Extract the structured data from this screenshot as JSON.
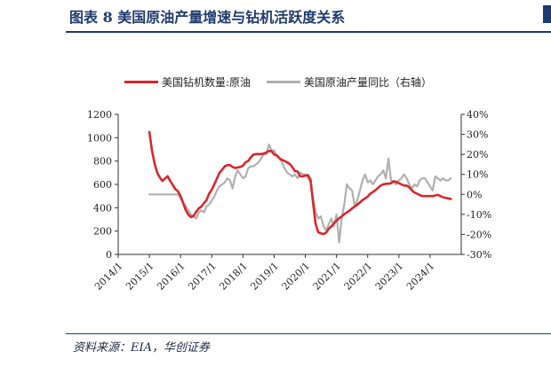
{
  "header": {
    "title": "图表 8  美国原油产量增速与钻机活跃度关系"
  },
  "footer": {
    "source": "资料来源：EIA，华创证券"
  },
  "chart_data": {
    "type": "line",
    "legend_position": "top",
    "grid": false,
    "x_ticks": [
      "2014/1",
      "2015/1",
      "2016/1",
      "2017/1",
      "2018/1",
      "2019/1",
      "2020/1",
      "2021/1",
      "2022/1",
      "2023/1",
      "2024/1"
    ],
    "xlim": [
      "2014-01",
      "2025-01"
    ],
    "y_left": {
      "ylim": [
        0,
        1200
      ],
      "ticks": [
        "0",
        "200",
        "400",
        "600",
        "800",
        "1000",
        "1200"
      ]
    },
    "y_right": {
      "ylim": [
        -30,
        40
      ],
      "ticks": [
        "-30%",
        "-20%",
        "-10%",
        "0%",
        "10%",
        "20%",
        "30%",
        "40%"
      ]
    },
    "series": [
      {
        "name": "美国钻机数量:原油",
        "axis": "left",
        "color": "#d9262c",
        "points": [
          [
            "2015-01",
            1050
          ],
          [
            "2015-02",
            890
          ],
          [
            "2015-03",
            780
          ],
          [
            "2015-04",
            700
          ],
          [
            "2015-05",
            660
          ],
          [
            "2015-06",
            630
          ],
          [
            "2015-07",
            650
          ],
          [
            "2015-08",
            670
          ],
          [
            "2015-09",
            630
          ],
          [
            "2015-10",
            595
          ],
          [
            "2015-11",
            560
          ],
          [
            "2015-12",
            540
          ],
          [
            "2016-01",
            500
          ],
          [
            "2016-02",
            440
          ],
          [
            "2016-03",
            380
          ],
          [
            "2016-04",
            340
          ],
          [
            "2016-05",
            320
          ],
          [
            "2016-06",
            330
          ],
          [
            "2016-07",
            365
          ],
          [
            "2016-08",
            395
          ],
          [
            "2016-09",
            410
          ],
          [
            "2016-10",
            440
          ],
          [
            "2016-11",
            465
          ],
          [
            "2016-12",
            520
          ],
          [
            "2017-01",
            555
          ],
          [
            "2017-02",
            600
          ],
          [
            "2017-03",
            650
          ],
          [
            "2017-04",
            700
          ],
          [
            "2017-05",
            725
          ],
          [
            "2017-06",
            755
          ],
          [
            "2017-07",
            765
          ],
          [
            "2017-08",
            765
          ],
          [
            "2017-09",
            750
          ],
          [
            "2017-10",
            740
          ],
          [
            "2017-11",
            745
          ],
          [
            "2017-12",
            750
          ],
          [
            "2018-01",
            760
          ],
          [
            "2018-02",
            790
          ],
          [
            "2018-03",
            800
          ],
          [
            "2018-04",
            830
          ],
          [
            "2018-05",
            855
          ],
          [
            "2018-06",
            860
          ],
          [
            "2018-07",
            860
          ],
          [
            "2018-08",
            860
          ],
          [
            "2018-09",
            865
          ],
          [
            "2018-10",
            873
          ],
          [
            "2018-11",
            886
          ],
          [
            "2018-12",
            885
          ],
          [
            "2019-01",
            855
          ],
          [
            "2019-02",
            850
          ],
          [
            "2019-03",
            825
          ],
          [
            "2019-04",
            810
          ],
          [
            "2019-05",
            800
          ],
          [
            "2019-06",
            790
          ],
          [
            "2019-07",
            775
          ],
          [
            "2019-08",
            750
          ],
          [
            "2019-09",
            715
          ],
          [
            "2019-10",
            710
          ],
          [
            "2019-11",
            670
          ],
          [
            "2019-12",
            668
          ],
          [
            "2020-01",
            675
          ],
          [
            "2020-02",
            680
          ],
          [
            "2020-03",
            640
          ],
          [
            "2020-04",
            440
          ],
          [
            "2020-05",
            260
          ],
          [
            "2020-06",
            190
          ],
          [
            "2020-07",
            180
          ],
          [
            "2020-08",
            175
          ],
          [
            "2020-09",
            185
          ],
          [
            "2020-10",
            220
          ],
          [
            "2020-11",
            240
          ],
          [
            "2020-12",
            265
          ],
          [
            "2021-01",
            290
          ],
          [
            "2021-02",
            310
          ],
          [
            "2021-03",
            325
          ],
          [
            "2021-04",
            345
          ],
          [
            "2021-05",
            360
          ],
          [
            "2021-06",
            375
          ],
          [
            "2021-07",
            395
          ],
          [
            "2021-08",
            410
          ],
          [
            "2021-09",
            425
          ],
          [
            "2021-10",
            445
          ],
          [
            "2021-11",
            465
          ],
          [
            "2021-12",
            480
          ],
          [
            "2022-01",
            495
          ],
          [
            "2022-02",
            520
          ],
          [
            "2022-03",
            535
          ],
          [
            "2022-04",
            550
          ],
          [
            "2022-05",
            570
          ],
          [
            "2022-06",
            590
          ],
          [
            "2022-07",
            600
          ],
          [
            "2022-08",
            605
          ],
          [
            "2022-09",
            605
          ],
          [
            "2022-10",
            610
          ],
          [
            "2022-11",
            627
          ],
          [
            "2022-12",
            621
          ],
          [
            "2023-01",
            610
          ],
          [
            "2023-02",
            600
          ],
          [
            "2023-03",
            590
          ],
          [
            "2023-04",
            590
          ],
          [
            "2023-05",
            575
          ],
          [
            "2023-06",
            550
          ],
          [
            "2023-07",
            530
          ],
          [
            "2023-08",
            520
          ],
          [
            "2023-09",
            510
          ],
          [
            "2023-10",
            500
          ],
          [
            "2023-11",
            500
          ],
          [
            "2023-12",
            500
          ],
          [
            "2024-01",
            500
          ],
          [
            "2024-02",
            500
          ],
          [
            "2024-03",
            505
          ],
          [
            "2024-04",
            510
          ],
          [
            "2024-05",
            500
          ],
          [
            "2024-06",
            490
          ],
          [
            "2024-07",
            485
          ],
          [
            "2024-08",
            480
          ],
          [
            "2024-09",
            475
          ]
        ]
      },
      {
        "name": "美国原油产量同比（右轴）",
        "axis": "right",
        "color": "#b0b0b0",
        "points": [
          [
            "2015-01",
            0
          ],
          [
            "2015-12",
            0
          ],
          [
            "2016-01",
            -2
          ],
          [
            "2016-02",
            -4
          ],
          [
            "2016-03",
            -6
          ],
          [
            "2016-04",
            -8
          ],
          [
            "2016-05",
            -10
          ],
          [
            "2016-06",
            -11
          ],
          [
            "2016-07",
            -12
          ],
          [
            "2016-08",
            -9
          ],
          [
            "2016-09",
            -8
          ],
          [
            "2016-10",
            -9
          ],
          [
            "2016-11",
            -6
          ],
          [
            "2016-12",
            -5
          ],
          [
            "2017-01",
            -3
          ],
          [
            "2017-02",
            -1
          ],
          [
            "2017-03",
            2
          ],
          [
            "2017-04",
            4
          ],
          [
            "2017-05",
            5
          ],
          [
            "2017-06",
            6
          ],
          [
            "2017-07",
            8
          ],
          [
            "2017-08",
            7
          ],
          [
            "2017-09",
            3
          ],
          [
            "2017-10",
            9
          ],
          [
            "2017-11",
            12
          ],
          [
            "2017-12",
            10
          ],
          [
            "2018-01",
            8
          ],
          [
            "2018-02",
            9
          ],
          [
            "2018-03",
            13
          ],
          [
            "2018-04",
            14
          ],
          [
            "2018-05",
            14
          ],
          [
            "2018-06",
            15
          ],
          [
            "2018-07",
            16
          ],
          [
            "2018-08",
            18
          ],
          [
            "2018-09",
            20
          ],
          [
            "2018-10",
            20
          ],
          [
            "2018-11",
            25
          ],
          [
            "2018-12",
            22
          ],
          [
            "2019-01",
            22
          ],
          [
            "2019-02",
            19
          ],
          [
            "2019-03",
            18
          ],
          [
            "2019-04",
            16
          ],
          [
            "2019-05",
            13
          ],
          [
            "2019-06",
            11
          ],
          [
            "2019-07",
            10
          ],
          [
            "2019-08",
            9
          ],
          [
            "2019-09",
            10
          ],
          [
            "2019-10",
            8
          ],
          [
            "2019-11",
            11
          ],
          [
            "2019-12",
            10
          ],
          [
            "2020-01",
            10
          ],
          [
            "2020-02",
            8
          ],
          [
            "2020-03",
            6
          ],
          [
            "2020-04",
            -2
          ],
          [
            "2020-05",
            -9
          ],
          [
            "2020-06",
            -12
          ],
          [
            "2020-07",
            -11
          ],
          [
            "2020-08",
            -16
          ],
          [
            "2020-09",
            -18
          ],
          [
            "2020-10",
            -15
          ],
          [
            "2020-11",
            -12
          ],
          [
            "2020-12",
            -16
          ],
          [
            "2021-01",
            -10
          ],
          [
            "2021-02",
            -24
          ],
          [
            "2021-03",
            -12
          ],
          [
            "2021-04",
            -5
          ],
          [
            "2021-05",
            5
          ],
          [
            "2021-06",
            3
          ],
          [
            "2021-07",
            2
          ],
          [
            "2021-08",
            -6
          ],
          [
            "2021-09",
            -3
          ],
          [
            "2021-10",
            2
          ],
          [
            "2021-11",
            7
          ],
          [
            "2021-12",
            10
          ],
          [
            "2022-01",
            6
          ],
          [
            "2022-02",
            7
          ],
          [
            "2022-03",
            5
          ],
          [
            "2022-04",
            7
          ],
          [
            "2022-05",
            9
          ],
          [
            "2022-06",
            10
          ],
          [
            "2022-07",
            12
          ],
          [
            "2022-08",
            8
          ],
          [
            "2022-09",
            18
          ],
          [
            "2022-10",
            7
          ],
          [
            "2022-11",
            6
          ],
          [
            "2022-12",
            5
          ],
          [
            "2023-01",
            7
          ],
          [
            "2023-02",
            8
          ],
          [
            "2023-03",
            10
          ],
          [
            "2023-04",
            8
          ],
          [
            "2023-05",
            5
          ],
          [
            "2023-06",
            3
          ],
          [
            "2023-07",
            5
          ],
          [
            "2023-08",
            4
          ],
          [
            "2023-09",
            7
          ],
          [
            "2023-10",
            8
          ],
          [
            "2023-11",
            8
          ],
          [
            "2023-12",
            6
          ],
          [
            "2024-01",
            4
          ],
          [
            "2024-02",
            2
          ],
          [
            "2024-03",
            9
          ],
          [
            "2024-04",
            8
          ],
          [
            "2024-05",
            7
          ],
          [
            "2024-06",
            8
          ],
          [
            "2024-07",
            7
          ],
          [
            "2024-08",
            7
          ],
          [
            "2024-09",
            8
          ]
        ]
      }
    ]
  }
}
